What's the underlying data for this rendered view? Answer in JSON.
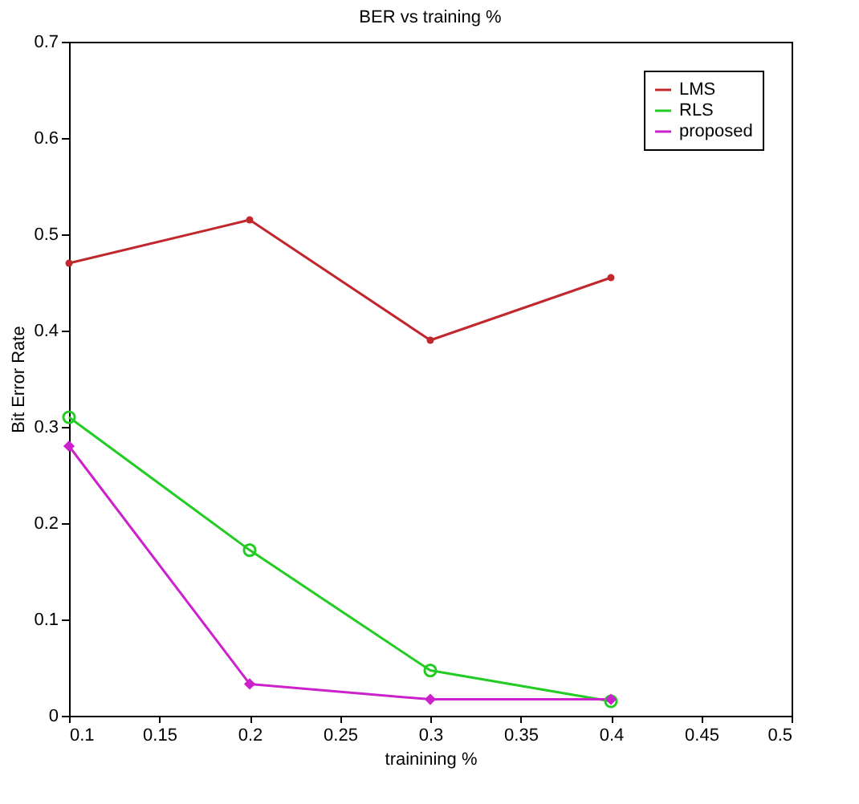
{
  "chart_data": {
    "type": "line",
    "title": "BER vs training %",
    "xlabel": "trainining %",
    "ylabel": "Bit Error Rate",
    "x": [
      0.1,
      0.2,
      0.3,
      0.4
    ],
    "series": [
      {
        "name": "LMS",
        "color": "#c0282d",
        "values": [
          0.47,
          0.515,
          0.39,
          0.455
        ],
        "marker": "circle_small"
      },
      {
        "name": "RLS",
        "color": "#22cc22",
        "values": [
          0.31,
          0.172,
          0.047,
          0.015
        ],
        "marker": "circle"
      },
      {
        "name": "proposed",
        "color": "#cc22cc",
        "values": [
          0.28,
          0.033,
          0.017,
          0.017
        ],
        "marker": "diamond"
      }
    ],
    "xlim": [
      0.1,
      0.5
    ],
    "xticks": [
      0.1,
      0.15,
      0.2,
      0.25,
      0.3,
      0.35,
      0.4,
      0.45,
      0.5
    ],
    "ylim": [
      0,
      0.7
    ],
    "yticks": [
      0,
      0.1,
      0.2,
      0.3,
      0.4,
      0.5,
      0.6,
      0.7
    ],
    "grid": false,
    "legend": "top right",
    "line_style": "solid"
  }
}
